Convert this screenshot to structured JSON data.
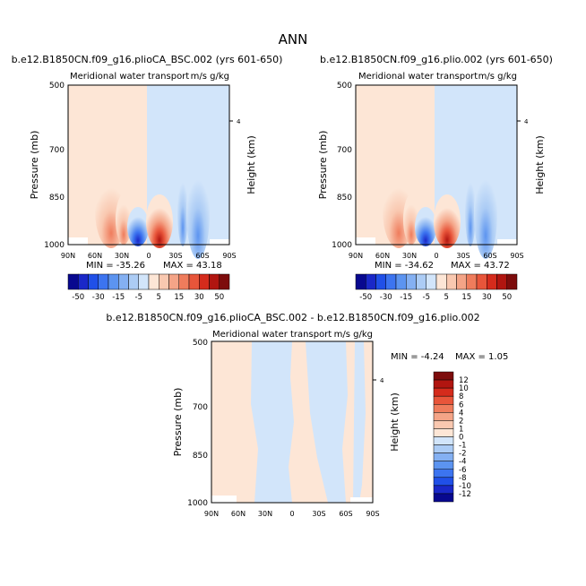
{
  "figure": {
    "title": "ANN",
    "diff_title": "b.e12.B1850CN.f09_g16.plioCA_BSC.002 - b.e12.B1850CN.f09_g16.plio.002"
  },
  "chart_data": [
    {
      "type": "contour",
      "panel": "left",
      "case_title": "b.e12.B1850CN.f09_g16.plioCA_BSC.002 (yrs 601-650)",
      "subtitle": "Meridional water transport",
      "units": "m/s g/kg",
      "ylabel": "Pressure (mb)",
      "right_label": "Height (km)",
      "right_ticks": [
        "4"
      ],
      "x_ticks": [
        "90N",
        "60N",
        "30N",
        "0",
        "30S",
        "60S",
        "90S"
      ],
      "y_ticks": [
        "500",
        "700",
        "850",
        "1000"
      ],
      "ylim": [
        1000,
        500
      ],
      "min_label": "MIN = -35.26",
      "max_label": "MAX = 43.18"
    },
    {
      "type": "contour",
      "panel": "right",
      "case_title": "b.e12.B1850CN.f09_g16.plio.002 (yrs 601-650)",
      "subtitle": "Meridional water transport",
      "units": "m/s g/kg",
      "ylabel": "Pressure (mb)",
      "right_label": "Height (km)",
      "right_ticks": [
        "4"
      ],
      "x_ticks": [
        "90N",
        "60N",
        "30N",
        "0",
        "30S",
        "60S",
        "90S"
      ],
      "y_ticks": [
        "500",
        "700",
        "850",
        "1000"
      ],
      "ylim": [
        1000,
        500
      ],
      "min_label": "MIN = -34.62",
      "max_label": "MAX = 43.72"
    },
    {
      "type": "contour",
      "panel": "diff",
      "subtitle": "Meridional water transport",
      "units": "m/s g/kg",
      "ylabel": "Pressure (mb)",
      "right_label": "Height (km)",
      "right_ticks": [
        "4"
      ],
      "x_ticks": [
        "90N",
        "60N",
        "30N",
        "0",
        "30S",
        "60S",
        "90S"
      ],
      "y_ticks": [
        "500",
        "700",
        "850",
        "1000"
      ],
      "ylim": [
        1000,
        500
      ],
      "min_label": "MIN =  -4.24",
      "max_label": "MAX =    1.05"
    }
  ],
  "colorbar_main": {
    "labels": [
      "-50",
      "-30",
      "-15",
      "-5",
      "5",
      "15",
      "30",
      "50"
    ],
    "colors": [
      "#08088f",
      "#1a28c8",
      "#2050e8",
      "#3c74f0",
      "#5c94f0",
      "#84b0f2",
      "#acccf5",
      "#d2e5fa",
      "#fde6d6",
      "#f9c8b0",
      "#f4a487",
      "#ef7c5c",
      "#e8553a",
      "#d52b1c",
      "#b11510",
      "#7d0c0c"
    ]
  },
  "colorbar_diff": {
    "labels": [
      "12",
      "10",
      "8",
      "6",
      "4",
      "2",
      "1",
      "0",
      "-1",
      "-2",
      "-4",
      "-6",
      "-8",
      "-10",
      "-12"
    ],
    "colors": [
      "#7d0c0c",
      "#b11510",
      "#d52b1c",
      "#e8553a",
      "#ef7c5c",
      "#f4a487",
      "#f9c8b0",
      "#fde6d6",
      "#d2e5fa",
      "#acccf5",
      "#84b0f2",
      "#5c94f0",
      "#3c74f0",
      "#2050e8",
      "#1a28c8",
      "#08088f"
    ]
  }
}
